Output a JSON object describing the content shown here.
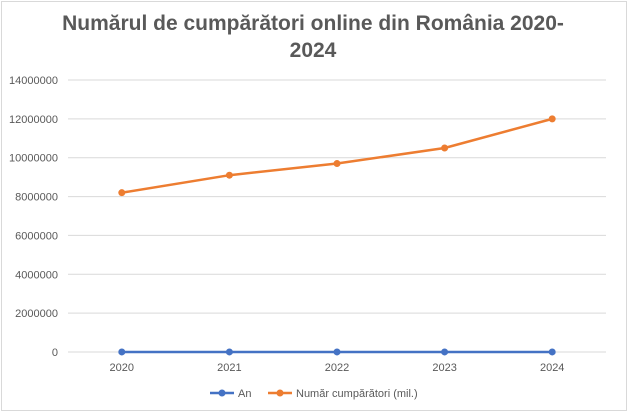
{
  "chart_data": {
    "type": "line",
    "title_lines": [
      "Numărul de cumpărători online din România 2020-",
      "2024"
    ],
    "categories": [
      "2020",
      "2021",
      "2022",
      "2023",
      "2024"
    ],
    "series": [
      {
        "name": "An",
        "values": [
          2020,
          2021,
          2022,
          2023,
          2024
        ],
        "color": "#4472c4"
      },
      {
        "name": "Număr cumpărători (mil.)",
        "values": [
          8200000,
          9100000,
          9700000,
          10500000,
          12000000
        ],
        "color": "#ed7d31"
      }
    ],
    "ylim": [
      0,
      14000000
    ],
    "yticks": [
      "0",
      "2000000",
      "4000000",
      "6000000",
      "8000000",
      "10000000",
      "12000000",
      "14000000"
    ],
    "grid": true,
    "legend_position": "bottom",
    "gridline_color": "#d9d9d9"
  }
}
